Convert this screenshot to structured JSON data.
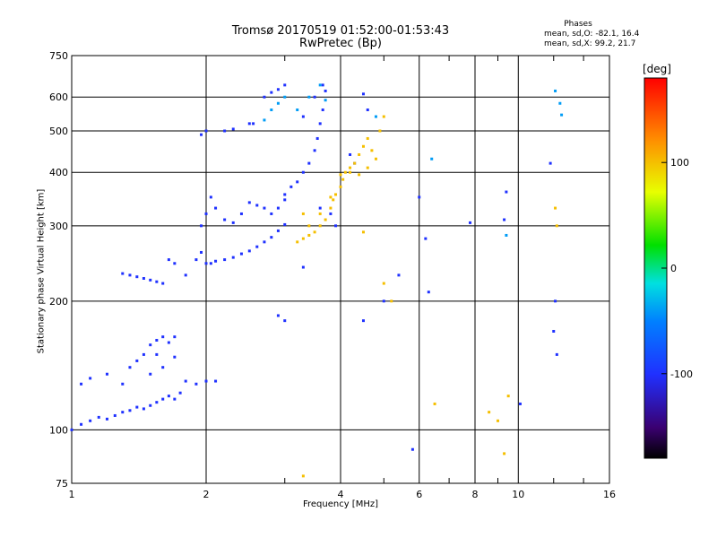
{
  "chart_data": {
    "type": "scatter",
    "title": "Tromsø 20170519 01:52:00-01:53:43",
    "subtitle": "RwPretec (Bp)",
    "xlabel": "Frequency [MHz]",
    "ylabel": "Stationary phase Virtual Height [km]",
    "x_scale": "log",
    "y_scale": "log",
    "xlim": [
      1,
      16
    ],
    "ylim": [
      75,
      750
    ],
    "x_ticks": [
      "1",
      "2",
      "4",
      "6",
      "8",
      "10",
      "16"
    ],
    "y_ticks": [
      "75",
      "100",
      "200",
      "300",
      "400",
      "500",
      "600",
      "750"
    ],
    "x_tick_values": [
      1,
      2,
      4,
      6,
      8,
      10,
      16
    ],
    "y_tick_values": [
      75,
      100,
      200,
      300,
      400,
      500,
      600,
      750
    ],
    "grid": true,
    "phases": {
      "title": "Phases",
      "o_stats": "mean, sd,O: -82.1, 16.4",
      "x_stats": "mean, sd,X:  99.2, 21.7"
    },
    "colorbar": {
      "label": "[deg]",
      "range": [
        -180,
        180
      ],
      "ticks": [
        "100",
        "0",
        "-100"
      ],
      "tick_values": [
        100,
        0,
        -100
      ]
    },
    "series": [
      {
        "name": "O-mode (blue, ~-100 deg)",
        "phase": -100,
        "points": [
          [
            1.0,
            100
          ],
          [
            1.05,
            103
          ],
          [
            1.1,
            105
          ],
          [
            1.15,
            107
          ],
          [
            1.2,
            106
          ],
          [
            1.25,
            108
          ],
          [
            1.3,
            110
          ],
          [
            1.35,
            111
          ],
          [
            1.4,
            113
          ],
          [
            1.45,
            112
          ],
          [
            1.5,
            114
          ],
          [
            1.55,
            116
          ],
          [
            1.6,
            118
          ],
          [
            1.65,
            120
          ],
          [
            1.7,
            118
          ],
          [
            1.75,
            122
          ],
          [
            1.05,
            128
          ],
          [
            1.1,
            132
          ],
          [
            1.2,
            135
          ],
          [
            1.3,
            128
          ],
          [
            1.35,
            140
          ],
          [
            1.4,
            145
          ],
          [
            1.45,
            150
          ],
          [
            1.5,
            158
          ],
          [
            1.55,
            162
          ],
          [
            1.6,
            165
          ],
          [
            1.65,
            160
          ],
          [
            1.7,
            165
          ],
          [
            1.5,
            135
          ],
          [
            1.6,
            140
          ],
          [
            1.55,
            150
          ],
          [
            1.7,
            148
          ],
          [
            1.8,
            130
          ],
          [
            1.9,
            128
          ],
          [
            2.0,
            130
          ],
          [
            2.1,
            130
          ],
          [
            1.3,
            232
          ],
          [
            1.35,
            230
          ],
          [
            1.4,
            228
          ],
          [
            1.45,
            226
          ],
          [
            1.5,
            224
          ],
          [
            1.55,
            222
          ],
          [
            1.6,
            220
          ],
          [
            1.65,
            250
          ],
          [
            1.7,
            245
          ],
          [
            1.8,
            230
          ],
          [
            1.9,
            250
          ],
          [
            1.95,
            260
          ],
          [
            2.0,
            245
          ],
          [
            2.05,
            245
          ],
          [
            2.1,
            248
          ],
          [
            2.2,
            250
          ],
          [
            2.3,
            253
          ],
          [
            2.4,
            258
          ],
          [
            2.5,
            262
          ],
          [
            2.6,
            268
          ],
          [
            2.7,
            275
          ],
          [
            2.8,
            282
          ],
          [
            2.9,
            292
          ],
          [
            3.0,
            302
          ],
          [
            1.95,
            300
          ],
          [
            2.0,
            320
          ],
          [
            2.05,
            350
          ],
          [
            2.1,
            330
          ],
          [
            2.2,
            310
          ],
          [
            2.3,
            305
          ],
          [
            2.4,
            320
          ],
          [
            2.5,
            340
          ],
          [
            2.6,
            335
          ],
          [
            2.7,
            330
          ],
          [
            2.8,
            320
          ],
          [
            2.9,
            330
          ],
          [
            3.0,
            345
          ],
          [
            3.0,
            355
          ],
          [
            3.1,
            370
          ],
          [
            3.2,
            380
          ],
          [
            3.3,
            400
          ],
          [
            3.4,
            420
          ],
          [
            3.5,
            450
          ],
          [
            3.55,
            480
          ],
          [
            3.6,
            520
          ],
          [
            3.65,
            560
          ],
          [
            3.7,
            620
          ],
          [
            3.65,
            640
          ],
          [
            3.5,
            600
          ],
          [
            3.3,
            540
          ],
          [
            2.5,
            520
          ],
          [
            2.2,
            500
          ],
          [
            2.0,
            500
          ],
          [
            1.95,
            490
          ],
          [
            2.3,
            505
          ],
          [
            2.55,
            520
          ],
          [
            2.7,
            600
          ],
          [
            2.8,
            615
          ],
          [
            2.9,
            625
          ],
          [
            3.0,
            640
          ],
          [
            4.5,
            610
          ],
          [
            4.6,
            560
          ],
          [
            4.2,
            440
          ],
          [
            4.3,
            420
          ],
          [
            3.6,
            330
          ],
          [
            3.8,
            320
          ],
          [
            3.9,
            300
          ],
          [
            3.3,
            240
          ],
          [
            2.9,
            185
          ],
          [
            3.0,
            180
          ],
          [
            4.5,
            180
          ],
          [
            5.0,
            200
          ],
          [
            5.4,
            230
          ],
          [
            5.8,
            90
          ],
          [
            6.2,
            280
          ],
          [
            6.3,
            210
          ],
          [
            6.0,
            350
          ],
          [
            7.8,
            305
          ],
          [
            9.3,
            310
          ],
          [
            9.4,
            360
          ],
          [
            10.1,
            115
          ],
          [
            12.1,
            200
          ],
          [
            12.2,
            150
          ],
          [
            12.0,
            170
          ],
          [
            11.8,
            420
          ]
        ]
      },
      {
        "name": "X-mode (orange/yellow, ~+100 deg)",
        "phase": 100,
        "points": [
          [
            3.2,
            275
          ],
          [
            3.3,
            280
          ],
          [
            3.4,
            285
          ],
          [
            3.5,
            290
          ],
          [
            3.6,
            300
          ],
          [
            3.7,
            310
          ],
          [
            3.8,
            330
          ],
          [
            3.85,
            345
          ],
          [
            3.9,
            355
          ],
          [
            4.0,
            370
          ],
          [
            4.05,
            385
          ],
          [
            4.1,
            400
          ],
          [
            4.2,
            410
          ],
          [
            4.3,
            420
          ],
          [
            4.4,
            440
          ],
          [
            4.5,
            460
          ],
          [
            4.6,
            480
          ],
          [
            3.4,
            300
          ],
          [
            3.6,
            320
          ],
          [
            3.8,
            350
          ],
          [
            4.0,
            395
          ],
          [
            4.2,
            400
          ],
          [
            4.4,
            395
          ],
          [
            4.6,
            410
          ],
          [
            4.8,
            430
          ],
          [
            4.9,
            500
          ],
          [
            5.0,
            540
          ],
          [
            4.7,
            450
          ],
          [
            3.3,
            320
          ],
          [
            4.5,
            290
          ],
          [
            5.2,
            200
          ],
          [
            5.0,
            220
          ],
          [
            6.5,
            115
          ],
          [
            3.3,
            78
          ],
          [
            9.3,
            88
          ],
          [
            9.0,
            105
          ],
          [
            9.5,
            120
          ],
          [
            8.6,
            110
          ],
          [
            12.1,
            330
          ],
          [
            12.2,
            300
          ]
        ]
      },
      {
        "name": "Cyan/green (~-40 deg)",
        "phase": -40,
        "points": [
          [
            2.7,
            530
          ],
          [
            2.8,
            560
          ],
          [
            2.9,
            580
          ],
          [
            3.0,
            600
          ],
          [
            3.2,
            560
          ],
          [
            3.4,
            600
          ],
          [
            3.6,
            640
          ],
          [
            3.7,
            590
          ],
          [
            4.8,
            540
          ],
          [
            12.1,
            620
          ],
          [
            12.5,
            545
          ],
          [
            12.4,
            580
          ],
          [
            6.4,
            430
          ],
          [
            9.4,
            285
          ]
        ]
      }
    ]
  }
}
